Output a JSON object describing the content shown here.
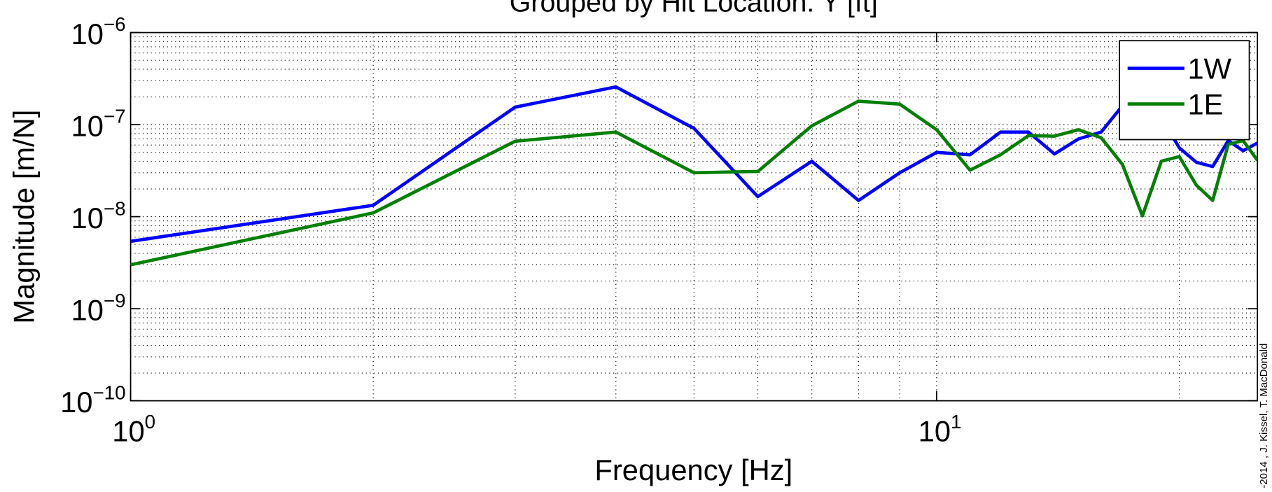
{
  "chart_data": {
    "type": "line",
    "title": "Grouped by Hit Location: Y [ft]",
    "xlabel": "Frequency [Hz]",
    "ylabel": "Magnitude [m/N]",
    "annotation": "-2014 , J. Kissel, T. MacDonald",
    "xscale": "log",
    "yscale": "log",
    "grid": true,
    "legend": "upper right",
    "xlim": [
      1,
      25
    ],
    "ylim": [
      1e-10,
      1e-06
    ],
    "xticks": [
      {
        "value": 1,
        "label": "10^0"
      },
      {
        "value": 10,
        "label": "10^1"
      }
    ],
    "yticks": [
      {
        "value": 1e-10,
        "label": "10^−10"
      },
      {
        "value": 1e-09,
        "label": "10^−9"
      },
      {
        "value": 1e-08,
        "label": "10^−8"
      },
      {
        "value": 1e-07,
        "label": "10^−7"
      },
      {
        "value": 1e-06,
        "label": "10^−6"
      }
    ],
    "x": [
      1,
      2,
      3,
      4,
      5,
      6,
      7,
      8,
      9,
      10,
      11,
      12,
      13,
      14,
      15,
      16,
      17,
      18,
      19,
      20,
      21,
      22,
      23,
      24,
      25
    ],
    "series": [
      {
        "name": "1W",
        "color": "#0000ff",
        "values": [
          5.4e-09,
          1.33e-08,
          1.55e-07,
          2.57e-07,
          9.1e-08,
          1.65e-08,
          4e-08,
          1.5e-08,
          3e-08,
          5e-08,
          4.7e-08,
          8.3e-08,
          8.3e-08,
          4.8e-08,
          7e-08,
          8.3e-08,
          1.6e-07,
          1.5e-07,
          1.19e-07,
          5.6e-08,
          3.9e-08,
          3.5e-08,
          6.7e-08,
          5.2e-08,
          6.3e-08
        ]
      },
      {
        "name": "1E",
        "color": "#007f00",
        "values": [
          3e-09,
          1.1e-08,
          6.6e-08,
          8.3e-08,
          3e-08,
          3.1e-08,
          9.7e-08,
          1.8e-07,
          1.67e-07,
          8.8e-08,
          3.2e-08,
          4.7e-08,
          7.6e-08,
          7.5e-08,
          8.8e-08,
          7.2e-08,
          3.7e-08,
          1.02e-08,
          4e-08,
          4.5e-08,
          2.2e-08,
          1.5e-08,
          6.1e-08,
          6.7e-08,
          4.1e-08
        ]
      }
    ]
  }
}
